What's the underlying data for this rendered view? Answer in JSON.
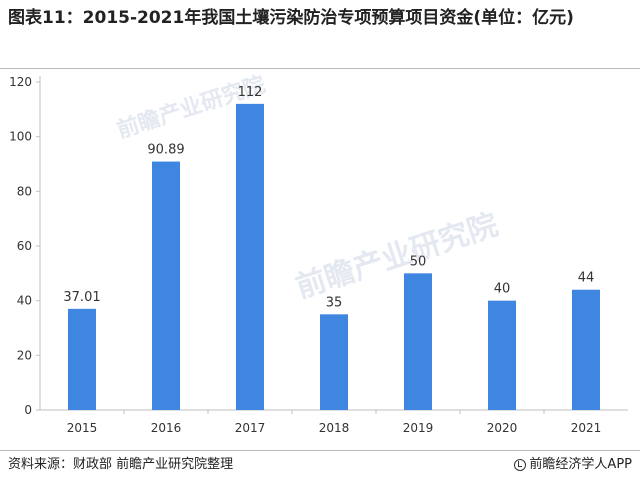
{
  "header": {
    "title": "图表11：2015-2021年我国土壤污染防治专项预算项目资金(单位：亿元)"
  },
  "footer": {
    "source": "资料来源：财政部 前瞻产业研究院整理",
    "brand": "前瞻经济学人APP",
    "brand_icon": "logo-icon"
  },
  "colors": {
    "bar": "#3f86e0",
    "axis": "#bfbfbf",
    "text": "#333333"
  },
  "chart_data": {
    "type": "bar",
    "categories": [
      "2015",
      "2016",
      "2017",
      "2018",
      "2019",
      "2020",
      "2021"
    ],
    "values": [
      37.01,
      90.89,
      112,
      35,
      50,
      40,
      44
    ],
    "value_labels": [
      "37.01",
      "90.89",
      "112",
      "35",
      "50",
      "40",
      "44"
    ],
    "title": "",
    "xlabel": "",
    "ylabel": "",
    "ylim": [
      0,
      120
    ],
    "yticks": [
      0,
      20,
      40,
      60,
      80,
      100,
      120
    ],
    "grid": false,
    "legend": "none"
  }
}
